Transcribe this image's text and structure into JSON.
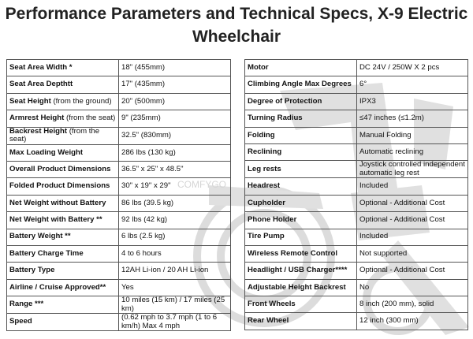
{
  "title_line1": "Performance Parameters and Technical Specs, X-9 Electric",
  "title_line2": "Wheelchair",
  "watermark_text": "COMFYGO",
  "left_rows": [
    {
      "label": "Seat Area Width *",
      "note": "",
      "value": "18\" (455mm)"
    },
    {
      "label": "Seat Area Depthtt",
      "note": "",
      "value": "17\" (435mm)"
    },
    {
      "label": "Seat Height",
      "note": " (from the ground)",
      "value": "20\" (500mm)"
    },
    {
      "label": "Armrest Height",
      "note": " (from the seat)",
      "value": "9\" (235mm)"
    },
    {
      "label": "Backrest Height",
      "note": " (from the seat)",
      "value": "32.5\" (830mm)"
    },
    {
      "label": "Max Loading Weight",
      "note": "",
      "value": "286 lbs (130 kg)"
    },
    {
      "label": "Overall Product Dimensions",
      "note": "",
      "value": "36.5\" x 25\" x 48.5\""
    },
    {
      "label": "Folded Product Dimensions",
      "note": "",
      "value": "30\" x 19\" x 29\""
    },
    {
      "label": "Net Weight without Battery",
      "note": "",
      "value": "86 lbs (39.5 kg)"
    },
    {
      "label": "Net Weight with Battery **",
      "note": "",
      "value": "92 lbs (42 kg)"
    },
    {
      "label": "Battery Weight **",
      "note": "",
      "value": "6 lbs (2.5 kg)"
    },
    {
      "label": "Battery Charge Time",
      "note": "",
      "value": "4 to 6 hours"
    },
    {
      "label": "Battery Type",
      "note": "",
      "value": "12AH Li-ion / 20 AH Li-ion"
    },
    {
      "label": "Airline / Cruise Approved**",
      "note": "",
      "value": "Yes"
    },
    {
      "label": "Range ***",
      "note": "",
      "value": "10 miles (15 km) / 17 miles (25 km)"
    },
    {
      "label": "Speed",
      "note": "",
      "value": "(0.62 mph to 3.7 mph (1 to 6 km/h) Max 4 mph"
    }
  ],
  "right_rows": [
    {
      "label": "Motor",
      "value": "DC 24V / 250W X 2 pcs"
    },
    {
      "label": "Climbing Angle Max Degrees",
      "value": "6°"
    },
    {
      "label": "Degree of Protection",
      "value": "IPX3"
    },
    {
      "label": "Turning Radius",
      "value": "≤47 inches (≤1.2m)"
    },
    {
      "label": "Folding",
      "value": "Manual Folding"
    },
    {
      "label": "Reclining",
      "value": "Automatic reclining"
    },
    {
      "label": "Leg rests",
      "value": "Joystick controlled independent automatic leg rest"
    },
    {
      "label": "Headrest",
      "value": "Included"
    },
    {
      "label": "Cupholder",
      "value": "Optional - Additional Cost"
    },
    {
      "label": "Phone Holder",
      "value": "Optional - Additional Cost"
    },
    {
      "label": "Tire Pump",
      "value": "Included"
    },
    {
      "label": "Wireless Remote Control",
      "value": "Not supported"
    },
    {
      "label": "Headlight / USB Charger****",
      "value": "Optional - Additional Cost"
    },
    {
      "label": "Adjustable Height Backrest",
      "value": "No"
    },
    {
      "label": "Front Wheels",
      "value": "8 inch (200 mm), solid"
    },
    {
      "label": "Rear Wheel",
      "value": "12 inch (300 mm)"
    }
  ]
}
